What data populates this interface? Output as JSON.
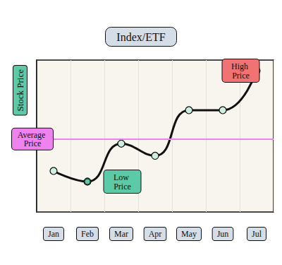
{
  "chart_data": {
    "type": "line",
    "title": "Index/ETF",
    "y_label": "Stock Price",
    "categories": [
      "Jan",
      "Feb",
      "Mar",
      "Apr",
      "May",
      "Jun",
      "Jul"
    ],
    "values": [
      27,
      20,
      45,
      37,
      67,
      67,
      93
    ],
    "color": "#111111",
    "colors": [
      "#cdeee0",
      "#5cc9a7",
      "#cdeee0",
      "#cdeee0",
      "#cdeee0",
      "#cdeee0",
      "#f07272"
    ],
    "marker": "circle",
    "ylim": [
      0,
      100
    ],
    "grid": true,
    "tick_labels": "x",
    "annotations": [
      {
        "text": "Average Price",
        "y": 48,
        "color": "#ee82ee"
      },
      {
        "text": "Low Price",
        "x": "Feb",
        "y": 20,
        "color": "#5cc9a7"
      },
      {
        "text": "High Price",
        "x": "Jul",
        "y": 93,
        "color": "#f07272"
      }
    ]
  }
}
